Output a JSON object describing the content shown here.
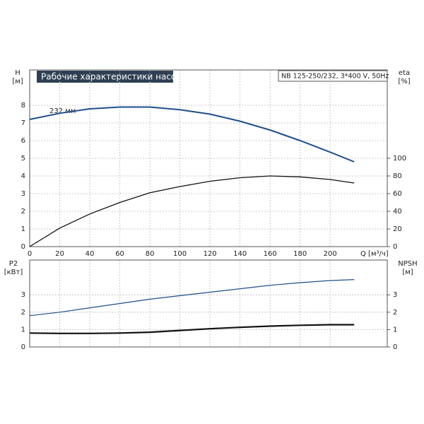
{
  "title": "Рабочие характеристики насоса",
  "model": "NB 125-250/232, 3*400 V, 50Hz",
  "curve_label": "232 мм",
  "chart_data": [
    {
      "type": "line",
      "x_label": "Q [м³/ч]",
      "y_label": "H",
      "y_unit": "[м]",
      "y2_label": "eta",
      "y2_unit": "[%]",
      "x": [
        0,
        20,
        40,
        60,
        80,
        100,
        120,
        140,
        160,
        180,
        200,
        216
      ],
      "xlim": [
        0,
        238
      ],
      "xticks": [
        0,
        20,
        40,
        60,
        80,
        100,
        120,
        140,
        160,
        180,
        200
      ],
      "ylim": [
        0,
        10
      ],
      "yticks": [
        0,
        1,
        2,
        3,
        4,
        5,
        6,
        7,
        8
      ],
      "y2lim": [
        0,
        200
      ],
      "y2ticks": [
        0,
        20,
        40,
        60,
        80,
        100
      ],
      "grid": true,
      "series": [
        {
          "name": "H",
          "color": "#1f4e8c",
          "width": 2,
          "values": [
            7.2,
            7.55,
            7.8,
            7.9,
            7.9,
            7.75,
            7.5,
            7.1,
            6.6,
            6.0,
            5.35,
            4.8
          ]
        },
        {
          "name": "eta",
          "axis": "y2",
          "color": "#111111",
          "width": 1.3,
          "values": [
            0,
            21,
            37,
            50,
            61,
            68,
            74,
            78,
            80,
            79,
            76,
            72
          ]
        }
      ]
    },
    {
      "type": "line",
      "y_label": "P2",
      "y_unit": "[кВт]",
      "y2_label": "NPSH",
      "y2_unit": "[м]",
      "x": [
        0,
        20,
        40,
        60,
        80,
        100,
        120,
        140,
        160,
        180,
        200,
        216
      ],
      "xlim": [
        0,
        238
      ],
      "xticks": [
        0,
        20,
        40,
        60,
        80,
        100,
        120,
        140,
        160,
        180,
        200
      ],
      "ylim": [
        0,
        5
      ],
      "yticks": [
        0,
        1,
        2,
        3
      ],
      "y2lim": [
        0,
        5
      ],
      "y2ticks": [
        0,
        1,
        2,
        3
      ],
      "grid": true,
      "series": [
        {
          "name": "P2",
          "color": "#111111",
          "width": 2.2,
          "values": [
            0.8,
            0.78,
            0.78,
            0.8,
            0.85,
            0.95,
            1.05,
            1.13,
            1.2,
            1.25,
            1.28,
            1.28
          ]
        },
        {
          "name": "NPSH",
          "axis": "y2",
          "color": "#1f4e8c",
          "width": 1.2,
          "values": [
            1.8,
            2.0,
            2.25,
            2.5,
            2.75,
            2.95,
            3.15,
            3.35,
            3.55,
            3.7,
            3.82,
            3.88
          ]
        }
      ]
    }
  ]
}
